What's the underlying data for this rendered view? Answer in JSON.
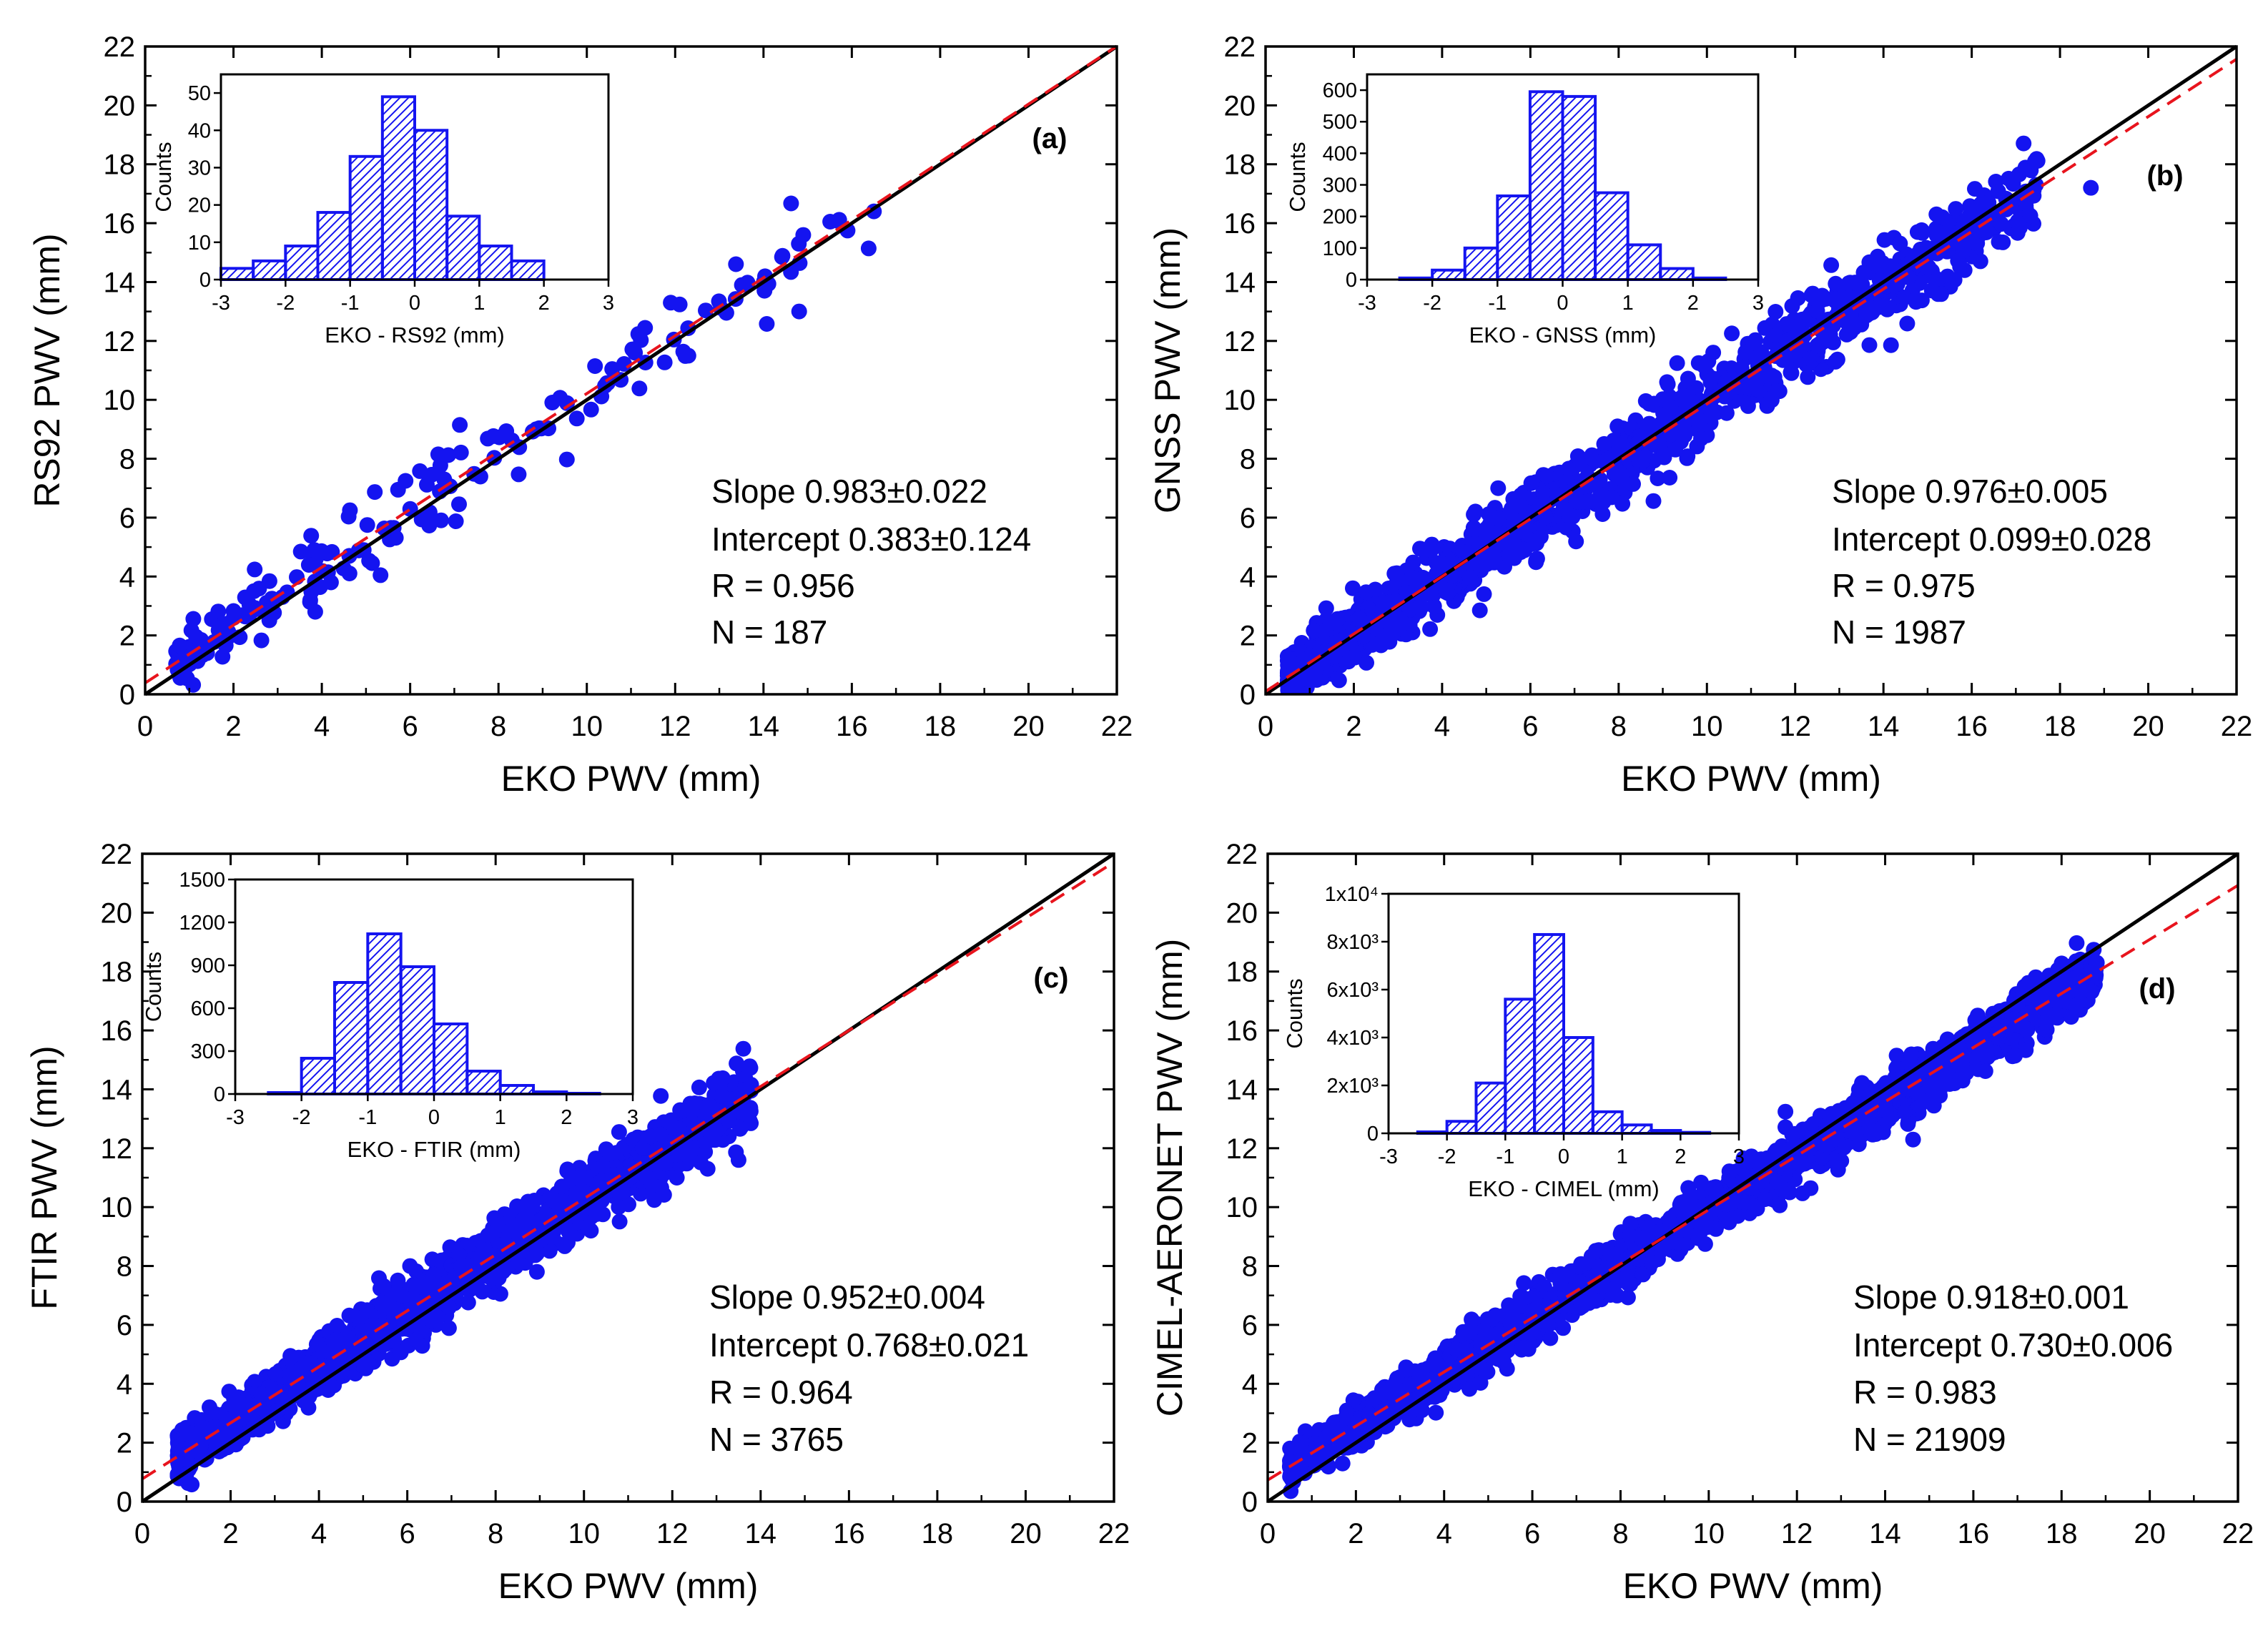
{
  "figure": "Four-panel scatter comparison of precipitable water vapour (PWV)",
  "chart_data": [
    {
      "type": "scatter",
      "panel_label": "(a)",
      "xlabel": "EKO PWV (mm)",
      "ylabel": "RS92 PWV (mm)",
      "xlim": [
        0,
        22
      ],
      "ylim": [
        0,
        22
      ],
      "xticks": [
        0,
        2,
        4,
        6,
        8,
        10,
        12,
        14,
        16,
        18,
        20,
        22
      ],
      "yticks": [
        0,
        2,
        4,
        6,
        8,
        10,
        12,
        14,
        16,
        18,
        20,
        22
      ],
      "stats": {
        "slope": "Slope 0.983±0.022",
        "intercept": "Intercept 0.383±0.124",
        "r": "R = 0.956",
        "n": "N = 187"
      },
      "fit": {
        "slope": 0.983,
        "intercept": 0.383,
        "color": "#e8141d",
        "style": "dashed"
      },
      "identity_line": {
        "color": "#000000"
      },
      "point_color": "#1414f0",
      "scatter": {
        "n_drawn": 187,
        "x_range": [
          0.7,
          16.5
        ],
        "spread": 0.75,
        "skew": 1.7,
        "extra_points": [
          [
            14.8,
            15.3
          ],
          [
            14.9,
            15.6
          ],
          [
            16.5,
            16.4
          ],
          [
            11.9,
            13.3
          ],
          [
            12.3,
            11.5
          ]
        ]
      },
      "inset": {
        "type": "histogram",
        "xlabel": "EKO - RS92 (mm)",
        "ylabel": "Counts",
        "xlim": [
          -3,
          3
        ],
        "ylim": [
          0,
          55
        ],
        "xticks": [
          "-3",
          "-2",
          "-1",
          "0",
          "1",
          "2",
          "3"
        ],
        "ytick_values": [
          0,
          10,
          20,
          30,
          40,
          50
        ],
        "ytick_labels": [
          "0",
          "10",
          "20",
          "30",
          "40",
          "50"
        ],
        "bin_width": 0.5,
        "bins": [
          -3,
          -2.5,
          -2,
          -1.5,
          -1,
          -0.5,
          0,
          0.5,
          1,
          1.5
        ],
        "counts": [
          3,
          5,
          9,
          18,
          33,
          49,
          40,
          17,
          9,
          5
        ]
      }
    },
    {
      "type": "scatter",
      "panel_label": "(b)",
      "xlabel": "EKO PWV (mm)",
      "ylabel": "GNSS PWV (mm)",
      "xlim": [
        0,
        22
      ],
      "ylim": [
        0,
        22
      ],
      "xticks": [
        0,
        2,
        4,
        6,
        8,
        10,
        12,
        14,
        16,
        18,
        20,
        22
      ],
      "yticks": [
        0,
        2,
        4,
        6,
        8,
        10,
        12,
        14,
        16,
        18,
        20,
        22
      ],
      "stats": {
        "slope": "Slope 0.976±0.005",
        "intercept": "Intercept 0.099±0.028",
        "r": "R = 0.975",
        "n": "N = 1987"
      },
      "fit": {
        "slope": 0.976,
        "intercept": 0.099,
        "color": "#e8141d",
        "style": "dashed"
      },
      "identity_line": {
        "color": "#000000"
      },
      "point_color": "#1414f0",
      "scatter": {
        "n_drawn": 1400,
        "x_range": [
          0.5,
          17.5
        ],
        "spread": 0.7,
        "skew": 1.6,
        "extra_points": [
          [
            18.7,
            17.2
          ],
          [
            0.6,
            0.3
          ],
          [
            15.2,
            16.3
          ],
          [
            13.0,
            13.3
          ]
        ]
      },
      "inset": {
        "type": "histogram",
        "xlabel": "EKO - GNSS (mm)",
        "ylabel": "Counts",
        "xlim": [
          -3,
          3
        ],
        "ylim": [
          0,
          650
        ],
        "xticks": [
          "-3",
          "-2",
          "-1",
          "0",
          "1",
          "2",
          "3"
        ],
        "ytick_values": [
          0,
          100,
          200,
          300,
          400,
          500,
          600
        ],
        "ytick_labels": [
          "0",
          "100",
          "200",
          "300",
          "400",
          "500",
          "600"
        ],
        "bin_width": 0.5,
        "bins": [
          -2.5,
          -2,
          -1.5,
          -1,
          -0.5,
          0,
          0.5,
          1,
          1.5,
          2
        ],
        "counts": [
          5,
          30,
          100,
          265,
          595,
          580,
          275,
          110,
          35,
          5
        ]
      }
    },
    {
      "type": "scatter",
      "panel_label": "(c)",
      "xlabel": "EKO PWV (mm)",
      "ylabel": "FTIR PWV (mm)",
      "xlim": [
        0,
        22
      ],
      "ylim": [
        0,
        22
      ],
      "xticks": [
        0,
        2,
        4,
        6,
        8,
        10,
        12,
        14,
        16,
        18,
        20,
        22
      ],
      "yticks": [
        0,
        2,
        4,
        6,
        8,
        10,
        12,
        14,
        16,
        18,
        20,
        22
      ],
      "stats": {
        "slope": "Slope  0.952±0.004",
        "intercept": "Intercept  0.768±0.021",
        "r": "R = 0.964",
        "n": "N = 3765"
      },
      "fit": {
        "slope": 0.952,
        "intercept": 0.768,
        "color": "#e8141d",
        "style": "dashed"
      },
      "identity_line": {
        "color": "#000000"
      },
      "point_color": "#1414f0",
      "scatter": {
        "n_drawn": 1900,
        "x_range": [
          0.8,
          13.8
        ],
        "spread": 0.55,
        "skew": 1.3,
        "extra_points": [
          [
            12.8,
            11.3
          ],
          [
            13.5,
            11.6
          ],
          [
            11.5,
            12.4
          ],
          [
            9.5,
            10.7
          ]
        ]
      },
      "inset": {
        "type": "histogram",
        "xlabel": "EKO - FTIR (mm)",
        "ylabel": "Counts",
        "xlim": [
          -3,
          3
        ],
        "ylim": [
          0,
          1500
        ],
        "xticks": [
          "-3",
          "-2",
          "-1",
          "0",
          "1",
          "2",
          "3"
        ],
        "ytick_values": [
          0,
          300,
          600,
          900,
          1200,
          1500
        ],
        "ytick_labels": [
          "0",
          "300",
          "600",
          "900",
          "1200",
          "1500"
        ],
        "bin_width": 0.5,
        "bins": [
          -2.5,
          -2,
          -1.5,
          -1,
          -0.5,
          0,
          0.5,
          1,
          1.5,
          2
        ],
        "counts": [
          10,
          250,
          780,
          1120,
          890,
          490,
          160,
          60,
          15,
          5
        ]
      }
    },
    {
      "type": "scatter",
      "panel_label": "(d)",
      "xlabel": "EKO PWV (mm)",
      "ylabel": "CIMEL-AERONET PWV (mm)",
      "xlim": [
        0,
        22
      ],
      "ylim": [
        0,
        22
      ],
      "xticks": [
        0,
        2,
        4,
        6,
        8,
        10,
        12,
        14,
        16,
        18,
        20,
        22
      ],
      "yticks": [
        0,
        2,
        4,
        6,
        8,
        10,
        12,
        14,
        16,
        18,
        20,
        22
      ],
      "stats": {
        "slope": "Slope 0.918±0.001",
        "intercept": "Intercept 0.730±0.006",
        "r": "R = 0.983",
        "n": "N = 21909"
      },
      "fit": {
        "slope": 0.918,
        "intercept": 0.73,
        "color": "#e8141d",
        "style": "dashed"
      },
      "identity_line": {
        "color": "#000000"
      },
      "point_color": "#1414f0",
      "scatter": {
        "n_drawn": 2600,
        "x_range": [
          0.5,
          18.8
        ],
        "spread": 0.45,
        "skew": 1.2,
        "extra_points": [
          [
            18.8,
            18.3
          ],
          [
            0.6,
            0.8
          ]
        ]
      },
      "inset": {
        "type": "histogram",
        "xlabel": "EKO - CIMEL (mm)",
        "ylabel": "Counts",
        "xlim": [
          -3,
          3
        ],
        "ylim": [
          0,
          10000
        ],
        "xticks": [
          "-3",
          "-2",
          "-1",
          "0",
          "1",
          "2",
          "3"
        ],
        "ytick_values": [
          0,
          2000,
          4000,
          6000,
          8000,
          10000
        ],
        "ytick_labels": [
          "0",
          "2x10³",
          "4x10³",
          "6x10³",
          "8x10³",
          "1x10⁴"
        ],
        "bin_width": 0.5,
        "bins": [
          -2.5,
          -2,
          -1.5,
          -1,
          -0.5,
          0,
          0.5,
          1,
          1.5,
          2
        ],
        "counts": [
          60,
          500,
          2100,
          5600,
          8300,
          4000,
          900,
          350,
          120,
          40
        ]
      }
    }
  ]
}
